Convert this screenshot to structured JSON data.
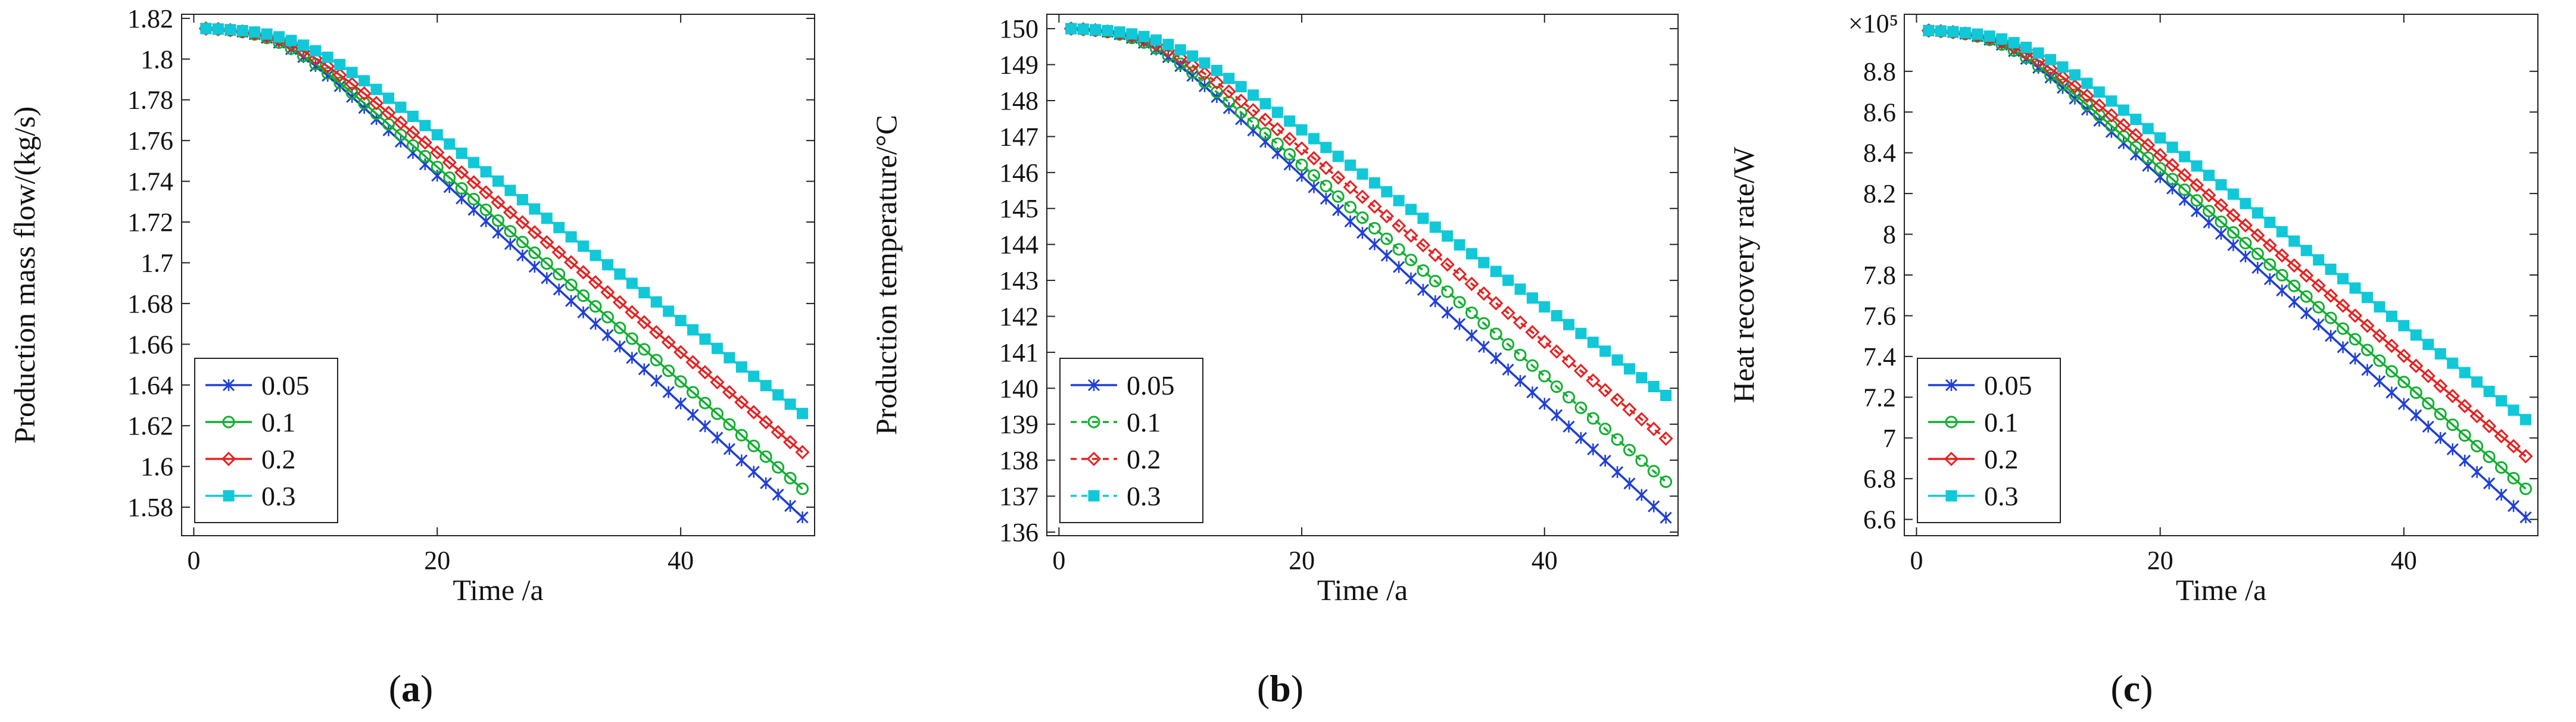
{
  "figure": {
    "captions": [
      {
        "open": "(",
        "letter": "a",
        "close": ")"
      },
      {
        "open": "(",
        "letter": "b",
        "close": ")"
      },
      {
        "open": "(",
        "letter": "c",
        "close": ")"
      }
    ]
  },
  "chart_data": [
    {
      "type": "line",
      "title": "",
      "xlabel": "Time /a",
      "ylabel": "Production mass flow/(kg/s)",
      "xlim": [
        -1,
        51
      ],
      "ylim": [
        1.566,
        1.822
      ],
      "xticks": [
        0,
        20,
        40
      ],
      "xtick_labels": [
        "0",
        "20",
        "40"
      ],
      "yticks": [
        1.58,
        1.6,
        1.62,
        1.64,
        1.66,
        1.68,
        1.7,
        1.72,
        1.74,
        1.76,
        1.78,
        1.8,
        1.82
      ],
      "ytick_labels": [
        "1.58",
        "1.6",
        "1.62",
        "1.64",
        "1.66",
        "1.68",
        "1.7",
        "1.72",
        "1.74",
        "1.76",
        "1.78",
        "1.8",
        "1.82"
      ],
      "exponent_label": "",
      "legend_location": "lower-left",
      "x_range": [
        1,
        50
      ],
      "series": [
        {
          "name": "0.05",
          "color": "#1f3fd8",
          "marker": "x",
          "dash": false,
          "start": 1.815,
          "end": 1.575,
          "onset": 7.0,
          "k": 0.052
        },
        {
          "name": "0.1",
          "color": "#10b030",
          "marker": "o",
          "dash": false,
          "start": 1.815,
          "end": 1.589,
          "onset": 7.0,
          "k": 0.049
        },
        {
          "name": "0.2",
          "color": "#e82020",
          "marker": "diamond",
          "dash": false,
          "start": 1.815,
          "end": 1.607,
          "onset": 7.5,
          "k": 0.046
        },
        {
          "name": "0.3",
          "color": "#10c8d8",
          "marker": "square",
          "dash": false,
          "start": 1.815,
          "end": 1.626,
          "onset": 8.5,
          "k": 0.043
        }
      ]
    },
    {
      "type": "line",
      "title": "",
      "xlabel": "Time /a",
      "ylabel": "Production temperature/°C",
      "xlim": [
        -1,
        51
      ],
      "ylim": [
        135.9,
        150.4
      ],
      "xticks": [
        0,
        20,
        40
      ],
      "xtick_labels": [
        "0",
        "20",
        "40"
      ],
      "yticks": [
        136,
        137,
        138,
        139,
        140,
        141,
        142,
        143,
        144,
        145,
        146,
        147,
        148,
        149,
        150
      ],
      "ytick_labels": [
        "136",
        "137",
        "138",
        "139",
        "140",
        "141",
        "142",
        "143",
        "144",
        "145",
        "146",
        "147",
        "148",
        "149",
        "150"
      ],
      "exponent_label": "",
      "legend_location": "lower-left",
      "x_range": [
        1,
        50
      ],
      "series": [
        {
          "name": "0.05",
          "color": "#1f3fd8",
          "marker": "x",
          "dash": false,
          "start": 150.0,
          "end": 136.4,
          "onset": 7.0,
          "k": 0.052
        },
        {
          "name": "0.1",
          "color": "#10b030",
          "marker": "o",
          "dash": true,
          "start": 150.0,
          "end": 137.4,
          "onset": 7.0,
          "k": 0.049
        },
        {
          "name": "0.2",
          "color": "#e82020",
          "marker": "diamond",
          "dash": true,
          "start": 150.0,
          "end": 138.6,
          "onset": 7.5,
          "k": 0.046
        },
        {
          "name": "0.3",
          "color": "#10c8d8",
          "marker": "square",
          "dash": true,
          "start": 150.0,
          "end": 139.8,
          "onset": 8.5,
          "k": 0.043
        }
      ]
    },
    {
      "type": "line",
      "title": "",
      "xlabel": "Time /a",
      "ylabel": "Heat recovery rate/W",
      "xlim": [
        -1,
        51
      ],
      "ylim": [
        6.52,
        9.08
      ],
      "xticks": [
        0,
        20,
        40
      ],
      "xtick_labels": [
        "0",
        "20",
        "40"
      ],
      "yticks": [
        6.6,
        6.8,
        7,
        7.2,
        7.4,
        7.6,
        7.8,
        8,
        8.2,
        8.4,
        8.6,
        8.8
      ],
      "ytick_labels": [
        "6.6",
        "6.8",
        "7",
        "7.2",
        "7.4",
        "7.6",
        "7.8",
        "8",
        "8.2",
        "8.4",
        "8.6",
        "8.8"
      ],
      "exponent_label": "×10⁵",
      "legend_location": "lower-left",
      "x_range": [
        1,
        50
      ],
      "series": [
        {
          "name": "0.05",
          "color": "#1f3fd8",
          "marker": "x",
          "dash": false,
          "start": 9.0,
          "end": 6.61,
          "onset": 7.0,
          "k": 0.052
        },
        {
          "name": "0.1",
          "color": "#10b030",
          "marker": "o",
          "dash": false,
          "start": 9.0,
          "end": 6.75,
          "onset": 7.0,
          "k": 0.049
        },
        {
          "name": "0.2",
          "color": "#e82020",
          "marker": "diamond",
          "dash": false,
          "start": 9.0,
          "end": 6.91,
          "onset": 7.5,
          "k": 0.046
        },
        {
          "name": "0.3",
          "color": "#10c8d8",
          "marker": "square",
          "dash": false,
          "start": 9.0,
          "end": 7.09,
          "onset": 8.5,
          "k": 0.043
        }
      ]
    }
  ]
}
